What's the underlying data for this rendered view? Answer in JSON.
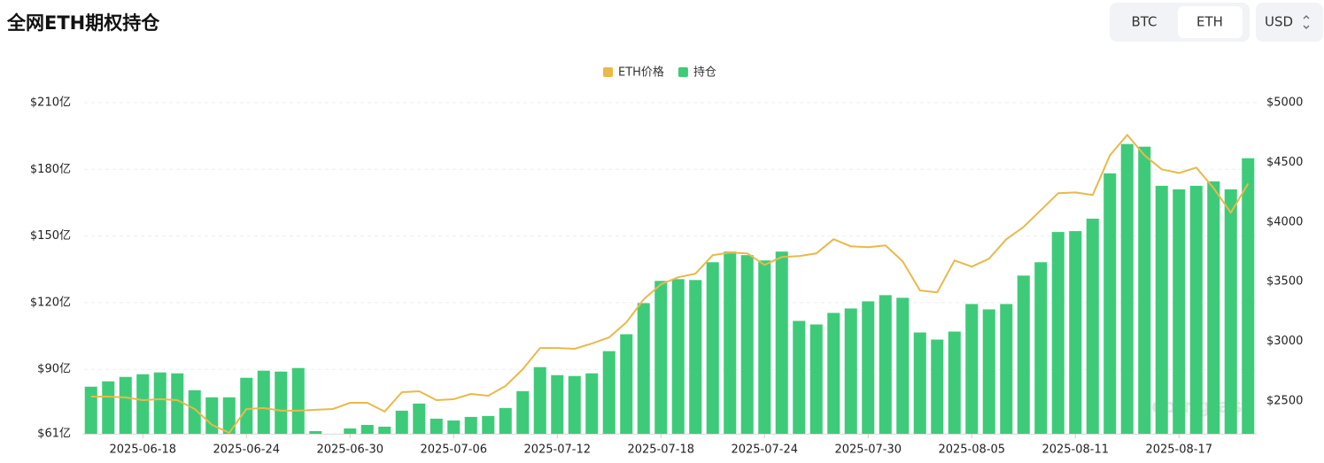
{
  "header": {
    "title": "全网ETH期权持仓",
    "toggle": [
      "BTC",
      "ETH"
    ],
    "currency": "USD"
  },
  "chart_data": {
    "type": "bar",
    "categories": [
      null,
      null,
      null,
      "2025-06-18",
      null,
      null,
      null,
      null,
      null,
      "2025-06-24",
      null,
      null,
      null,
      null,
      null,
      "2025-06-30",
      null,
      null,
      null,
      null,
      null,
      "2025-07-06",
      null,
      null,
      null,
      null,
      null,
      "2025-07-12",
      null,
      null,
      null,
      null,
      null,
      "2025-07-18",
      null,
      null,
      null,
      null,
      null,
      "2025-07-24",
      null,
      null,
      null,
      null,
      null,
      "2025-07-30",
      null,
      null,
      null,
      null,
      null,
      "2025-08-05",
      null,
      null,
      null,
      null,
      null,
      "2025-08-11",
      null,
      null,
      null,
      null,
      null,
      "2025-08-17",
      null,
      null,
      null,
      null
    ],
    "series": [
      {
        "name": "ETH价格",
        "type": "line",
        "axis": "y2",
        "color": "#e9b949",
        "values": [
          2537,
          2537,
          2530,
          2507,
          2515,
          2507,
          2433,
          2300,
          2233,
          2433,
          2441,
          2419,
          2419,
          2426,
          2433,
          2485,
          2485,
          2411,
          2574,
          2581,
          2507,
          2515,
          2559,
          2544,
          2626,
          2767,
          2944,
          2944,
          2937,
          2981,
          3033,
          3159,
          3352,
          3478,
          3537,
          3567,
          3722,
          3744,
          3737,
          3641,
          3707,
          3715,
          3737,
          3856,
          3796,
          3789,
          3804,
          3670,
          3426,
          3411,
          3678,
          3626,
          3693,
          3856,
          3959,
          4100,
          4241,
          4248,
          4226,
          4559,
          4730,
          4559,
          4441,
          4411,
          4456,
          4285,
          4078,
          4322
        ]
      },
      {
        "name": "持仓",
        "type": "bar",
        "color": "#3ecb79",
        "values": [
          82.2,
          84.6,
          86.6,
          87.8,
          88.6,
          88.2,
          80.6,
          77.4,
          77.4,
          86.2,
          89.4,
          89,
          90.6,
          62.2,
          61,
          63.4,
          65,
          64.2,
          71.4,
          74.6,
          67.8,
          67,
          68.6,
          69,
          72.6,
          80.2,
          91,
          87.4,
          87,
          88.2,
          98.2,
          105.8,
          119.8,
          129.8,
          130.6,
          130.2,
          138.2,
          143,
          141.4,
          139,
          143,
          111.8,
          110.2,
          115.4,
          117.4,
          120.6,
          123.4,
          122.2,
          106.6,
          103.4,
          107,
          119.4,
          117,
          119.4,
          132.2,
          138.2,
          151.8,
          152.2,
          157.8,
          178.2,
          191.4,
          190.2,
          172.6,
          171,
          172.6,
          174.6,
          171,
          185
        ]
      }
    ],
    "ylim": [
      61,
      210
    ],
    "yticks": [
      {
        "value": 61,
        "label": "$61亿"
      },
      {
        "value": 90,
        "label": "$90亿"
      },
      {
        "value": 120,
        "label": "$120亿"
      },
      {
        "value": 150,
        "label": "$150亿"
      },
      {
        "value": 180,
        "label": "$180亿"
      },
      {
        "value": 210,
        "label": "$210亿"
      }
    ],
    "y2lim": [
      2225,
      5000
    ],
    "y2ticks": [
      {
        "value": 2500,
        "label": "$2500"
      },
      {
        "value": 3000,
        "label": "$3000"
      },
      {
        "value": 3500,
        "label": "$3500"
      },
      {
        "value": 4000,
        "label": "$4000"
      },
      {
        "value": 4500,
        "label": "$4500"
      },
      {
        "value": 5000,
        "label": "$5000"
      }
    ],
    "grid": true,
    "legend": "top",
    "watermark": "coinglass"
  }
}
